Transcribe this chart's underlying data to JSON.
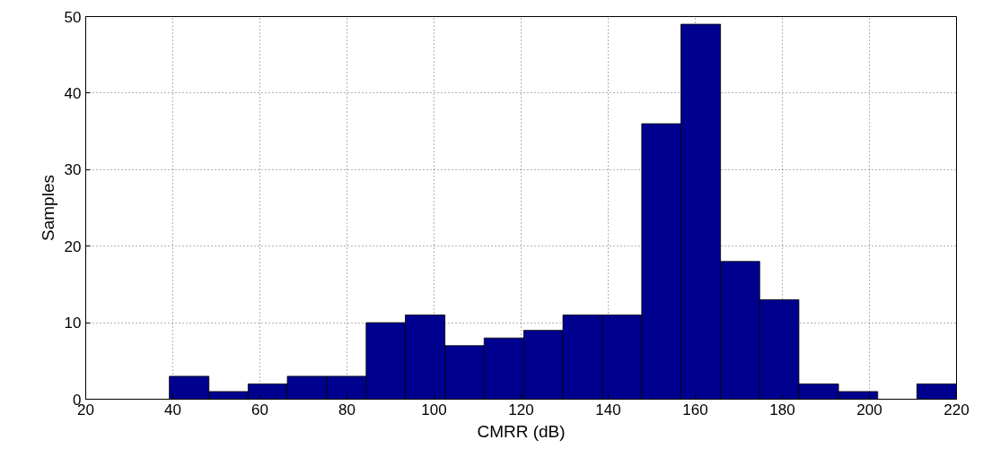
{
  "chart_data": {
    "type": "histogram",
    "xlabel": "CMRR (dB)",
    "ylabel": "Samples",
    "bins": [
      39.2,
      48.3,
      57.3,
      66.3,
      75.4,
      84.4,
      93.4,
      102.5,
      111.5,
      120.6,
      129.6,
      138.6,
      147.7,
      156.7,
      165.8,
      174.8,
      183.8,
      192.9,
      201.9,
      210.9,
      220.0
    ],
    "values": [
      3,
      1,
      2,
      3,
      3,
      10,
      11,
      7,
      8,
      9,
      11,
      11,
      36,
      49,
      18,
      13,
      2,
      1,
      0,
      2
    ],
    "color": "#00008f",
    "xlim": [
      20,
      220
    ],
    "xticks": [
      20,
      40,
      60,
      80,
      100,
      120,
      140,
      160,
      180,
      200,
      220
    ],
    "ylim": [
      0,
      50
    ],
    "yticks": [
      0,
      10,
      20,
      30,
      40,
      50
    ],
    "grid": true
  }
}
